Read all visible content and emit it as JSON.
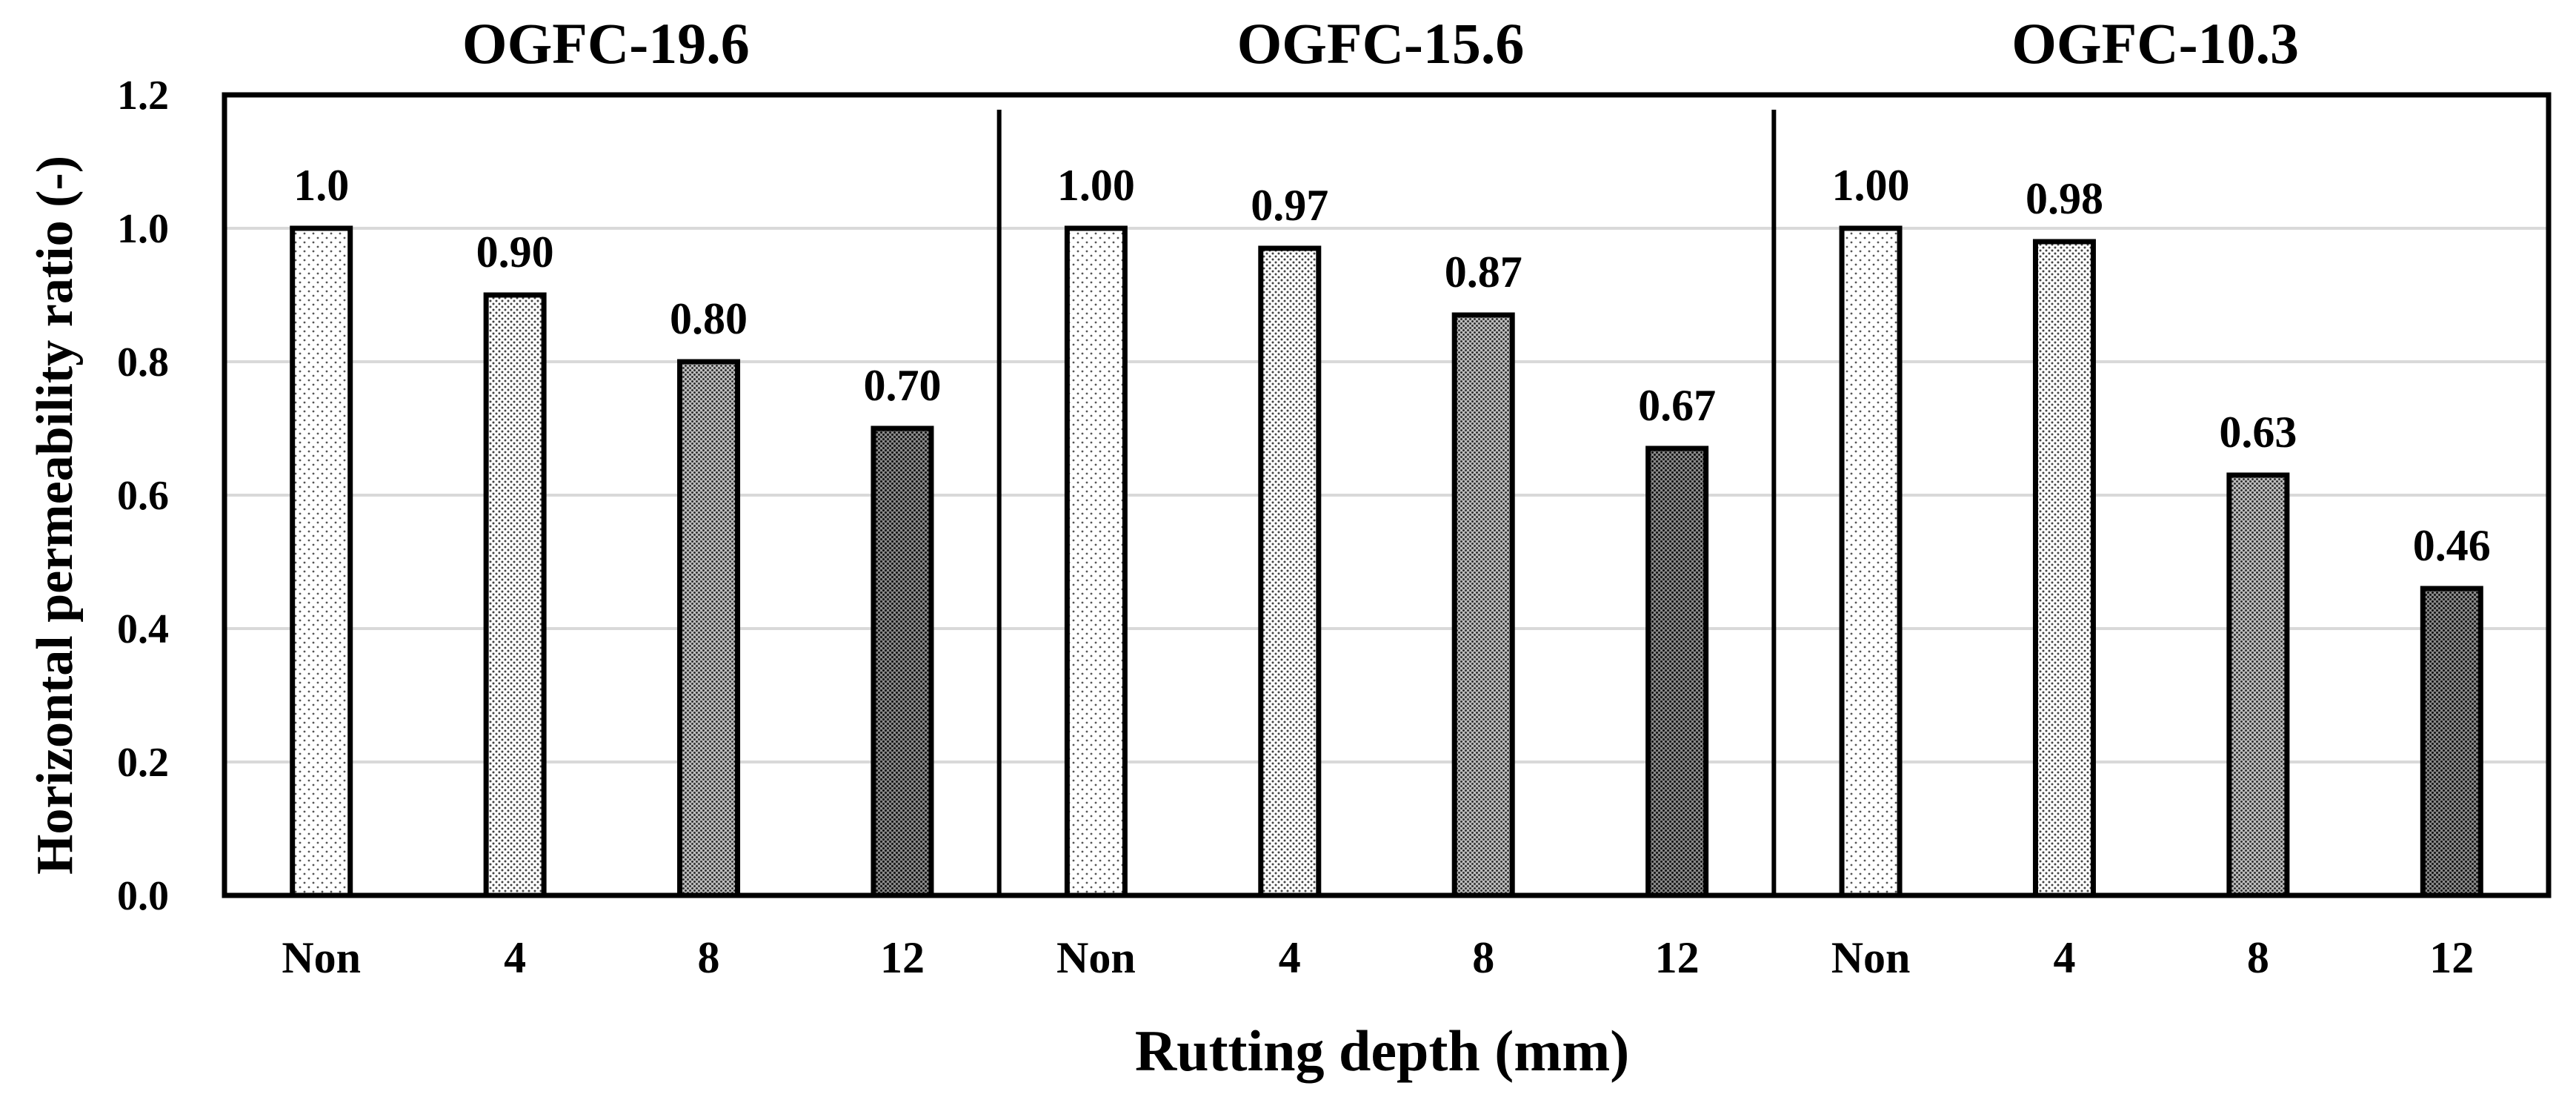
{
  "chart_data": {
    "type": "bar",
    "ylabel": "Horizontal permeability ratio (-)",
    "xlabel": "Rutting depth (mm)",
    "ylim": [
      0,
      1.2
    ],
    "yticks": [
      "0.0",
      "0.2",
      "0.4",
      "0.6",
      "0.8",
      "1.0",
      "1.2"
    ],
    "categories": [
      "Non",
      "4",
      "8",
      "12"
    ],
    "grid": "horizontal",
    "groups": [
      {
        "title": "OGFC-19.6",
        "values": [
          1.0,
          0.9,
          0.8,
          0.7
        ],
        "labels": [
          "1.0",
          "0.90",
          "0.80",
          "0.70"
        ]
      },
      {
        "title": "OGFC-15.6",
        "values": [
          1.0,
          0.97,
          0.87,
          0.67
        ],
        "labels": [
          "1.00",
          "0.97",
          "0.87",
          "0.67"
        ]
      },
      {
        "title": "OGFC-10.3",
        "values": [
          1.0,
          0.98,
          0.63,
          0.46
        ],
        "labels": [
          "1.00",
          "0.98",
          "0.63",
          "0.46"
        ]
      }
    ],
    "colors": {
      "frame": "#000000",
      "grid": "#d9d9d9",
      "fill": "#ffffff"
    }
  }
}
